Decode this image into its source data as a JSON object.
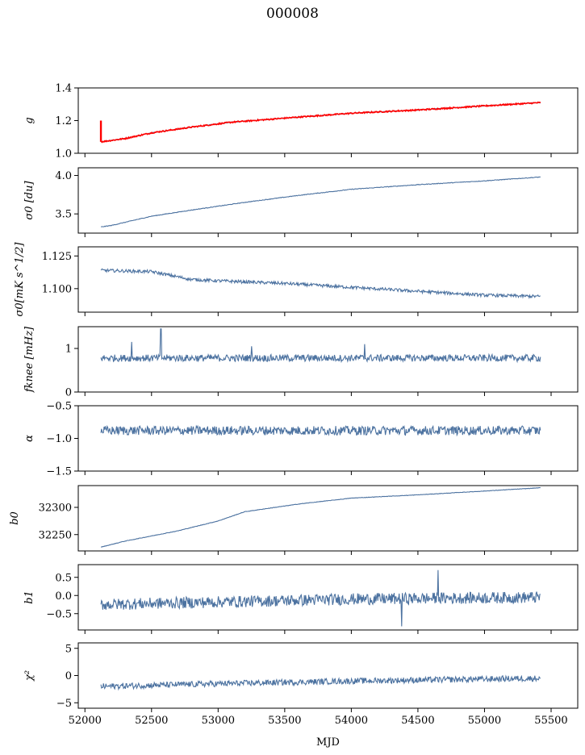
{
  "figure": {
    "title": "000008"
  },
  "chart_data": {
    "type": "line",
    "xlabel": "MJD",
    "xlim": [
      51950,
      55700
    ],
    "xticks": [
      52000,
      52500,
      53000,
      53500,
      54000,
      54500,
      55000,
      55500
    ],
    "xtick_labels": [
      "52000",
      "52500",
      "53000",
      "53500",
      "54000",
      "54500",
      "55000",
      "55500"
    ],
    "x_start": 52120,
    "x_end": 55420,
    "line_color": "#4c72a0",
    "highlight_color": "#ff0000",
    "panels": [
      {
        "name": "g",
        "ylabel": "g",
        "ylim": [
          1.0,
          1.4
        ],
        "yticks": [
          1.0,
          1.2,
          1.4
        ],
        "ytick_labels": [
          "1.0",
          "1.2",
          "1.4"
        ],
        "series": [
          {
            "name": "g",
            "trend": [
              [
                52120,
                1.07
              ],
              [
                52300,
                1.09
              ],
              [
                52500,
                1.125
              ],
              [
                52800,
                1.16
              ],
              [
                53100,
                1.19
              ],
              [
                53500,
                1.215
              ],
              [
                54000,
                1.245
              ],
              [
                54500,
                1.265
              ],
              [
                55000,
                1.29
              ],
              [
                55420,
                1.31
              ]
            ],
            "noise": 0.002
          },
          {
            "name": "g (reference)",
            "color": "red",
            "trend": [
              [
                52120,
                1.07
              ],
              [
                52300,
                1.09
              ],
              [
                52500,
                1.125
              ],
              [
                52800,
                1.16
              ],
              [
                53100,
                1.19
              ],
              [
                53500,
                1.215
              ],
              [
                54000,
                1.245
              ],
              [
                54500,
                1.265
              ],
              [
                55000,
                1.29
              ],
              [
                55420,
                1.31
              ]
            ],
            "noise": 0.004,
            "spike": {
              "x": 52120,
              "y": 1.2
            }
          }
        ]
      },
      {
        "name": "sigma0",
        "ylabel": "σ0 [du]",
        "ylim": [
          3.25,
          4.1
        ],
        "yticks": [
          3.5,
          4.0
        ],
        "ytick_labels": [
          "3.5",
          "4.0"
        ],
        "series": [
          {
            "name": "sigma0",
            "trend": [
              [
                52120,
                3.33
              ],
              [
                52200,
                3.35
              ],
              [
                52500,
                3.47
              ],
              [
                52800,
                3.55
              ],
              [
                53200,
                3.65
              ],
              [
                53600,
                3.74
              ],
              [
                54000,
                3.82
              ],
              [
                54500,
                3.88
              ],
              [
                55000,
                3.93
              ],
              [
                55420,
                3.98
              ]
            ],
            "noise": 0.004
          }
        ]
      },
      {
        "name": "sigma0_mK",
        "ylabel": "σ0[mK s^1/2]",
        "ylim": [
          1.082,
          1.132
        ],
        "yticks": [
          1.1,
          1.125
        ],
        "ytick_labels": [
          "1.100",
          "1.125"
        ],
        "series": [
          {
            "name": "sigma0_mK",
            "trend": [
              [
                52120,
                1.114
              ],
              [
                52500,
                1.113
              ],
              [
                52800,
                1.107
              ],
              [
                53000,
                1.106
              ],
              [
                53500,
                1.104
              ],
              [
                54000,
                1.101
              ],
              [
                54500,
                1.098
              ],
              [
                55000,
                1.095
              ],
              [
                55420,
                1.094
              ]
            ],
            "noise": 0.0012
          }
        ]
      },
      {
        "name": "fknee",
        "ylabel": "fknee [mHz]",
        "ylim": [
          0,
          1.5
        ],
        "yticks": [
          0,
          1
        ],
        "ytick_labels": [
          "0",
          "1"
        ],
        "series": [
          {
            "name": "fknee",
            "trend": [
              [
                52120,
                0.78
              ],
              [
                55420,
                0.78
              ]
            ],
            "noise": 0.08,
            "spikes": [
              [
                52570,
                1.45
              ],
              [
                52350,
                1.15
              ],
              [
                53250,
                1.05
              ],
              [
                54100,
                1.1
              ]
            ]
          }
        ]
      },
      {
        "name": "alpha",
        "ylabel": "α",
        "ylim": [
          -1.5,
          -0.5
        ],
        "yticks": [
          -1.5,
          -1.0,
          -0.5
        ],
        "ytick_labels": [
          "−1.5",
          "−1.0",
          "−0.5"
        ],
        "series": [
          {
            "name": "alpha",
            "trend": [
              [
                52120,
                -0.88
              ],
              [
                55420,
                -0.88
              ]
            ],
            "noise": 0.07
          }
        ]
      },
      {
        "name": "b0",
        "ylabel": "b0",
        "ylim": [
          32220,
          32340
        ],
        "yticks": [
          32250,
          32300
        ],
        "ytick_labels": [
          "32250",
          "32300"
        ],
        "series": [
          {
            "name": "b0",
            "trend": [
              [
                52120,
                32227
              ],
              [
                52300,
                32238
              ],
              [
                52700,
                32257
              ],
              [
                53000,
                32275
              ],
              [
                53200,
                32292
              ],
              [
                53600,
                32306
              ],
              [
                54000,
                32317
              ],
              [
                54500,
                32323
              ],
              [
                55000,
                32330
              ],
              [
                55420,
                32336
              ]
            ],
            "noise": 0.4
          }
        ]
      },
      {
        "name": "b1",
        "ylabel": "b1",
        "ylim": [
          -0.95,
          0.85
        ],
        "yticks": [
          -0.5,
          0.0,
          0.5
        ],
        "ytick_labels": [
          "−0.5",
          "0.0",
          "0.5"
        ],
        "series": [
          {
            "name": "b1",
            "trend": [
              [
                52120,
                -0.25
              ],
              [
                53000,
                -0.18
              ],
              [
                54000,
                -0.1
              ],
              [
                55420,
                -0.05
              ]
            ],
            "noise": 0.16,
            "spikes": [
              [
                54380,
                -0.85
              ],
              [
                54650,
                0.7
              ]
            ]
          }
        ]
      },
      {
        "name": "chi2",
        "ylabel": "χ²",
        "ylim": [
          -6,
          6
        ],
        "yticks": [
          -5,
          0,
          5
        ],
        "ytick_labels": [
          "−5",
          "0",
          "5"
        ],
        "series": [
          {
            "name": "chi2",
            "trend": [
              [
                52120,
                -2.0
              ],
              [
                53000,
                -1.5
              ],
              [
                54000,
                -1.0
              ],
              [
                55420,
                -0.5
              ]
            ],
            "noise": 0.55
          }
        ]
      }
    ]
  }
}
